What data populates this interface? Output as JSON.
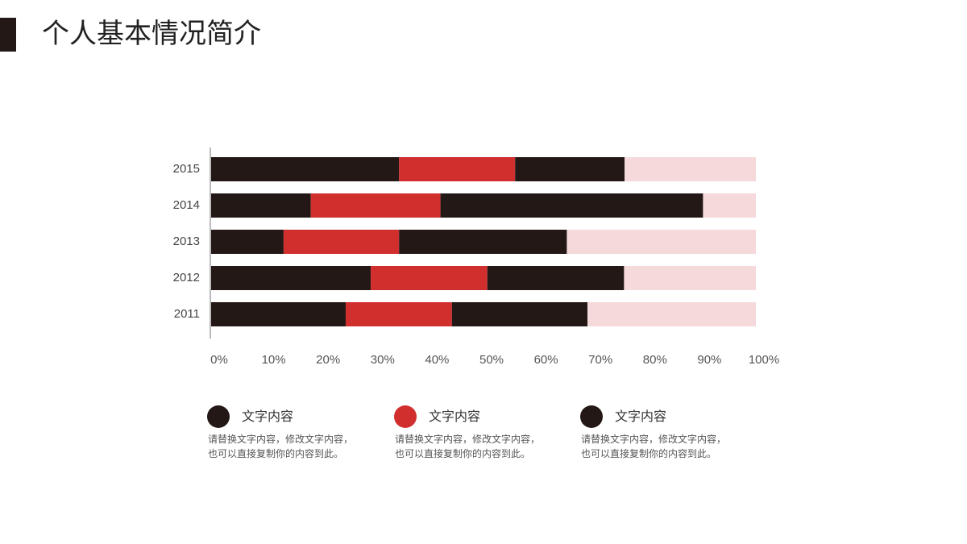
{
  "chart_data": {
    "type": "stacked_bar_horizontal",
    "title": "个人基本情况简介",
    "categories": [
      "2015",
      "2014",
      "2013",
      "2012",
      "2011"
    ],
    "series": [
      {
        "name": "文字内容",
        "color": "#231815",
        "values": [
          34.5,
          18.3,
          13.3,
          29.3,
          24.7
        ],
        "description": [
          "请替换文字内容，修改文字内容，",
          "也可以直接复制你的内容到此。"
        ]
      },
      {
        "name": "文字内容",
        "color": "#d12e2e",
        "values": [
          21.3,
          23.8,
          21.2,
          21.4,
          19.5
        ],
        "description": [
          "请替换文字内容，修改文字内容，",
          "也可以直接复制你的内容到此。"
        ]
      },
      {
        "name": "文字内容",
        "color": "#231815",
        "values": [
          20.1,
          48.2,
          30.8,
          25.1,
          24.9
        ],
        "description": [
          "请替换文字内容，修改文字内容，",
          "也可以直接复制你的内容到此。"
        ]
      },
      {
        "color": "#f6d9da",
        "values": [
          24.1,
          9.7,
          34.7,
          24.2,
          30.9
        ]
      }
    ],
    "xlim": [
      0,
      100
    ],
    "xticks": [
      {
        "value": 0,
        "label": "0%"
      },
      {
        "value": 10,
        "label": "10%"
      },
      {
        "value": 20,
        "label": "20%"
      },
      {
        "value": 30,
        "label": "30%"
      },
      {
        "value": 40,
        "label": "40%"
      },
      {
        "value": 50,
        "label": "50%"
      },
      {
        "value": 60,
        "label": "60%"
      },
      {
        "value": 70,
        "label": "70%"
      },
      {
        "value": 80,
        "label": "80%"
      },
      {
        "value": 90,
        "label": "90%"
      },
      {
        "value": 100,
        "label": "100%"
      }
    ],
    "grid": false
  }
}
